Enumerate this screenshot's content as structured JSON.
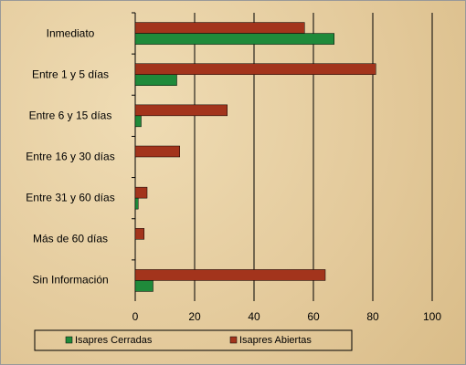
{
  "chart_data": {
    "type": "bar",
    "orientation": "horizontal",
    "categories": [
      "Inmediato",
      "Entre 1 y 5 días",
      "Entre 6 y 15 días",
      "Entre 16 y 30 días",
      "Entre 31 y 60 días",
      "Más de 60 días",
      "Sin Información"
    ],
    "series": [
      {
        "name": "Isapres Cerradas",
        "color": "#1f8a3a",
        "values": [
          67,
          14,
          2,
          0,
          1,
          0,
          6
        ]
      },
      {
        "name": "Isapres Abiertas",
        "color": "#a3341c",
        "values": [
          57,
          81,
          31,
          15,
          4,
          3,
          64
        ]
      }
    ],
    "xlim": [
      0,
      100
    ],
    "xticks": [
      0,
      20,
      40,
      60,
      80,
      100
    ],
    "grid": true
  }
}
